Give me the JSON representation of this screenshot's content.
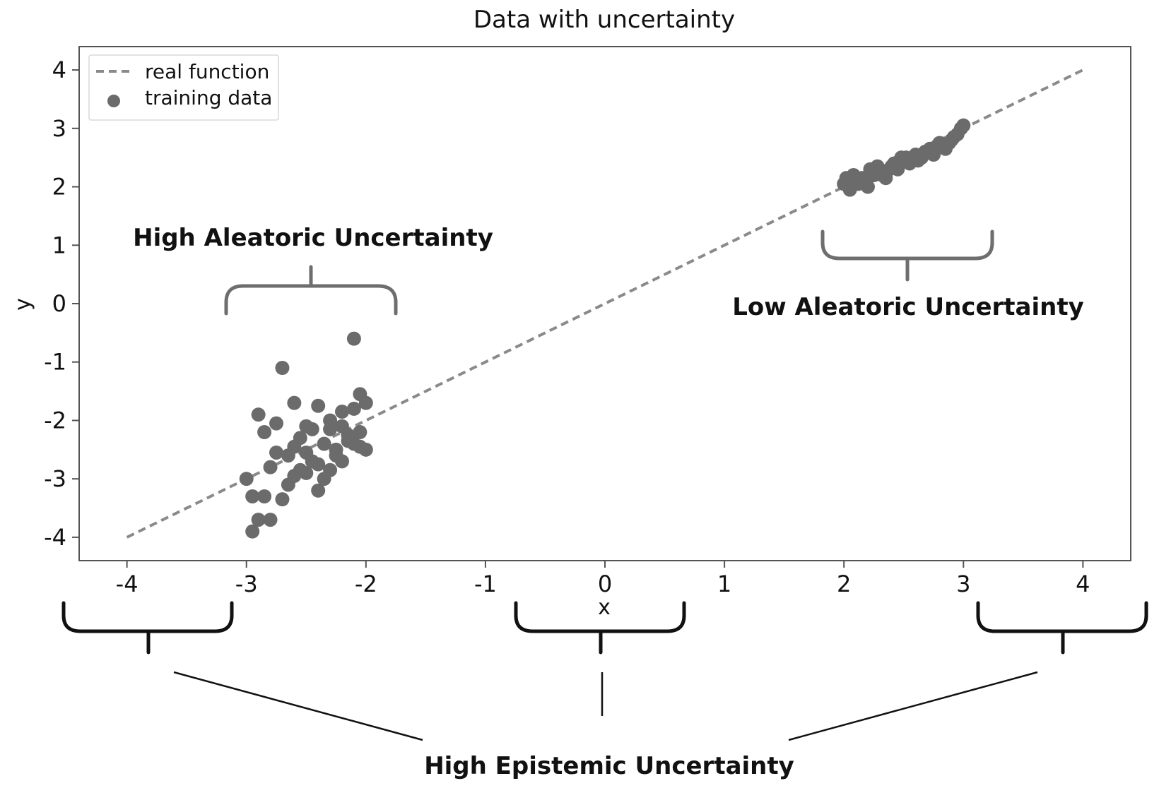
{
  "chart_data": {
    "type": "scatter",
    "title": "Data with uncertainty",
    "xlabel": "x",
    "ylabel": "y",
    "xlim": [
      -4.4,
      4.4
    ],
    "ylim": [
      -4.4,
      4.4
    ],
    "xticks": [
      -4,
      -3,
      -2,
      -1,
      0,
      1,
      2,
      3,
      4
    ],
    "yticks": [
      4,
      3,
      2,
      1,
      0,
      -1,
      -2,
      -3,
      -4
    ],
    "tick_labels_x": [
      "-4",
      "-3",
      "-2",
      "-1",
      "0",
      "1",
      "2",
      "3",
      "4"
    ],
    "tick_labels_y": [
      "4",
      "3",
      "2",
      "1",
      "0",
      "-1",
      "-2",
      "-3",
      "-4"
    ],
    "grid": false,
    "legend_position": "top-left",
    "colors": {
      "line": "#8a8a8a",
      "points": "#6b6b6b",
      "brace_gray": "#6e6e6e",
      "brace_dark": "#111111"
    },
    "series": [
      {
        "name": "real function",
        "kind": "line",
        "style": "dashed",
        "x": [
          -4,
          4
        ],
        "y": [
          -4,
          4
        ]
      },
      {
        "name": "training data",
        "kind": "scatter",
        "x": [
          -2.1,
          -2.7,
          -2.05,
          -2.2,
          -2.6,
          -2.9,
          -2.5,
          -2.3,
          -2.15,
          -2.85,
          -2.4,
          -2.55,
          -2.1,
          -2.25,
          -2.45,
          -2.75,
          -3.0,
          -2.35,
          -2.65,
          -2.0,
          -2.95,
          -2.2,
          -2.5,
          -2.8,
          -2.05,
          -2.3,
          -2.6,
          -2.4,
          -2.15,
          -2.7,
          -2.9,
          -2.45,
          -2.0,
          -2.25,
          -2.55,
          -2.85,
          -2.35,
          -2.1,
          -2.65,
          -2.5,
          -2.2,
          -2.75,
          -2.4,
          -2.05,
          -2.95,
          -2.3,
          -2.6,
          -2.8,
          2.0,
          2.05,
          2.1,
          2.15,
          2.2,
          2.25,
          2.3,
          2.35,
          2.4,
          2.45,
          2.5,
          2.55,
          2.6,
          2.65,
          2.7,
          2.75,
          2.8,
          2.85,
          2.9,
          2.95,
          3.0,
          2.02,
          2.12,
          2.22,
          2.32,
          2.42,
          2.52,
          2.62,
          2.72,
          2.82,
          2.92,
          2.08,
          2.18,
          2.28,
          2.38,
          2.48,
          2.58,
          2.68,
          2.78,
          2.88,
          2.98
        ],
        "y": [
          -0.6,
          -1.1,
          -1.55,
          -1.85,
          -1.7,
          -1.9,
          -2.1,
          -2.0,
          -2.25,
          -2.2,
          -1.75,
          -2.3,
          -1.8,
          -2.5,
          -2.15,
          -2.05,
          -3.0,
          -2.4,
          -2.6,
          -1.7,
          -3.3,
          -2.7,
          -2.55,
          -2.8,
          -2.45,
          -2.85,
          -2.95,
          -3.2,
          -2.35,
          -3.35,
          -3.7,
          -2.7,
          -2.5,
          -2.6,
          -2.85,
          -3.3,
          -3.0,
          -2.4,
          -3.1,
          -2.9,
          -2.1,
          -2.55,
          -2.75,
          -2.2,
          -3.9,
          -2.15,
          -2.45,
          -3.7,
          2.05,
          1.95,
          2.1,
          2.15,
          2.0,
          2.2,
          2.25,
          2.15,
          2.35,
          2.3,
          2.45,
          2.4,
          2.55,
          2.5,
          2.6,
          2.55,
          2.75,
          2.65,
          2.8,
          2.9,
          3.05,
          2.15,
          2.05,
          2.3,
          2.2,
          2.4,
          2.5,
          2.45,
          2.65,
          2.7,
          2.85,
          2.2,
          2.1,
          2.35,
          2.3,
          2.5,
          2.45,
          2.6,
          2.7,
          2.75,
          3.0
        ]
      }
    ],
    "annotations": [
      {
        "id": "high-aleatoric",
        "text": "High Aleatoric Uncertainty"
      },
      {
        "id": "low-aleatoric",
        "text": "Low Aleatoric Uncertainty"
      },
      {
        "id": "high-epistemic",
        "text": "High Epistemic Uncertainty"
      }
    ]
  }
}
